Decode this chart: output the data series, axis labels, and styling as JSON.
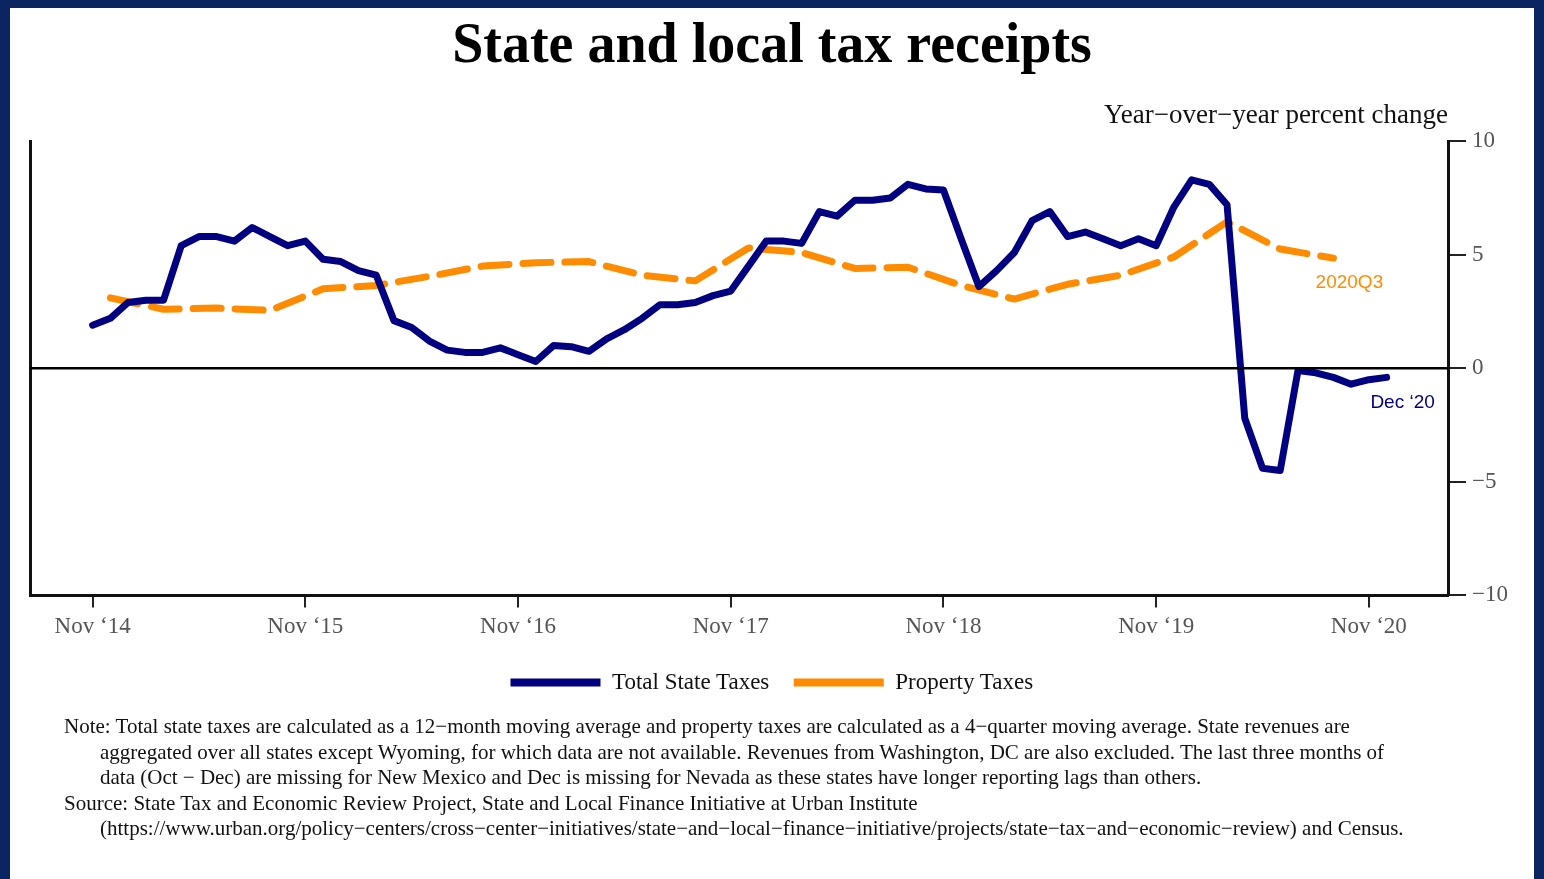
{
  "chart_data": {
    "type": "line",
    "title": "State and local tax receipts",
    "ylabel": "Year−over−year percent change",
    "xlim": [
      "2014-07-15",
      "2021-03-15"
    ],
    "xticks": [
      {
        "value": "2014-11",
        "label": "Nov ‘14"
      },
      {
        "value": "2015-11",
        "label": "Nov ‘15"
      },
      {
        "value": "2016-11",
        "label": "Nov ‘16"
      },
      {
        "value": "2017-11",
        "label": "Nov ‘17"
      },
      {
        "value": "2018-11",
        "label": "Nov ‘18"
      },
      {
        "value": "2019-11",
        "label": "Nov ‘19"
      },
      {
        "value": "2020-11",
        "label": "Nov ‘20"
      }
    ],
    "ylim": [
      -10,
      10
    ],
    "yticks": [
      -10,
      -5,
      0,
      5,
      10
    ],
    "grid": false,
    "legend": "bottom",
    "marker": "none",
    "ref_lines": [
      {
        "axis": "y",
        "value": 0,
        "color": "#000000"
      }
    ],
    "series": [
      {
        "name": "Total State Taxes",
        "color": "#000080",
        "line_style": "solid",
        "x": [
          "2014-11",
          "2014-12",
          "2015-01",
          "2015-02",
          "2015-03",
          "2015-04",
          "2015-05",
          "2015-06",
          "2015-07",
          "2015-08",
          "2015-09",
          "2015-10",
          "2015-11",
          "2015-12",
          "2016-01",
          "2016-02",
          "2016-03",
          "2016-04",
          "2016-05",
          "2016-06",
          "2016-07",
          "2016-08",
          "2016-09",
          "2016-10",
          "2016-11",
          "2016-12",
          "2017-01",
          "2017-02",
          "2017-03",
          "2017-04",
          "2017-05",
          "2017-06",
          "2017-07",
          "2017-08",
          "2017-09",
          "2017-10",
          "2017-11",
          "2017-12",
          "2018-01",
          "2018-02",
          "2018-03",
          "2018-04",
          "2018-05",
          "2018-06",
          "2018-07",
          "2018-08",
          "2018-09",
          "2018-10",
          "2018-11",
          "2018-12",
          "2019-01",
          "2019-02",
          "2019-03",
          "2019-04",
          "2019-05",
          "2019-06",
          "2019-07",
          "2019-08",
          "2019-09",
          "2019-10",
          "2019-11",
          "2019-12",
          "2020-01",
          "2020-02",
          "2020-03",
          "2020-04",
          "2020-05",
          "2020-06",
          "2020-07",
          "2020-08",
          "2020-09",
          "2020-10",
          "2020-11",
          "2020-12"
        ],
        "values": [
          1.9,
          2.2,
          2.9,
          3.0,
          3.0,
          5.4,
          5.8,
          5.8,
          5.6,
          6.2,
          5.8,
          5.4,
          5.6,
          4.8,
          4.7,
          4.3,
          4.1,
          2.1,
          1.8,
          1.2,
          0.8,
          0.7,
          0.7,
          0.9,
          0.6,
          0.3,
          1.0,
          0.95,
          0.75,
          1.3,
          1.7,
          2.2,
          2.8,
          2.8,
          2.9,
          3.2,
          3.4,
          4.5,
          5.6,
          5.6,
          5.5,
          6.9,
          6.7,
          7.4,
          7.4,
          7.5,
          8.1,
          7.9,
          7.85,
          5.7,
          3.6,
          4.3,
          5.1,
          6.5,
          6.9,
          5.8,
          6.0,
          5.7,
          5.4,
          5.7,
          5.4,
          7.1,
          8.3,
          8.1,
          7.2,
          -2.2,
          -4.4,
          -4.5,
          -0.1,
          -0.2,
          -0.4,
          -0.7,
          -0.5,
          -0.4
        ]
      },
      {
        "name": "Property Taxes",
        "color": "#ff8c00",
        "line_style": "dashed",
        "x": [
          "2014-12",
          "2015-03",
          "2015-06",
          "2015-09",
          "2015-12",
          "2016-03",
          "2016-06",
          "2016-09",
          "2016-12",
          "2017-03",
          "2017-06",
          "2017-09",
          "2017-12",
          "2018-03",
          "2018-06",
          "2018-09",
          "2018-12",
          "2019-03",
          "2019-06",
          "2019-09",
          "2019-12",
          "2020-03",
          "2020-06",
          "2020-09"
        ],
        "values": [
          3.1,
          2.6,
          2.65,
          2.55,
          3.5,
          3.65,
          4.05,
          4.5,
          4.65,
          4.7,
          4.1,
          3.85,
          5.3,
          5.1,
          4.4,
          4.45,
          3.65,
          3.05,
          3.7,
          4.1,
          4.9,
          6.45,
          5.25,
          4.85
        ]
      }
    ],
    "annotations": [
      {
        "text": "2020Q3",
        "x": "2020-09",
        "y": 4.85
      },
      {
        "text": "Dec ‘20",
        "x": "2020-12",
        "y": -0.4
      },
      "Note: Total state taxes are calculated as a 12−month moving average and property taxes are calculated as a 4−quarter moving average. State revenues are aggregated over all states except Wyoming, for which data are not available. Revenues from Washington, DC are also excluded. The last three months of data (Oct − Dec) are missing for New Mexico and Dec is missing for Nevada as these states have longer reporting lags than others.",
      "Source: State Tax and Economic Review Project, State and Local Finance Initiative at Urban Institute (https://www.urban.org/policy−centers/cross−center−initiatives/state−and−local−finance−initiative/projects/state−tax−and−economic−review) and Census."
    ]
  }
}
